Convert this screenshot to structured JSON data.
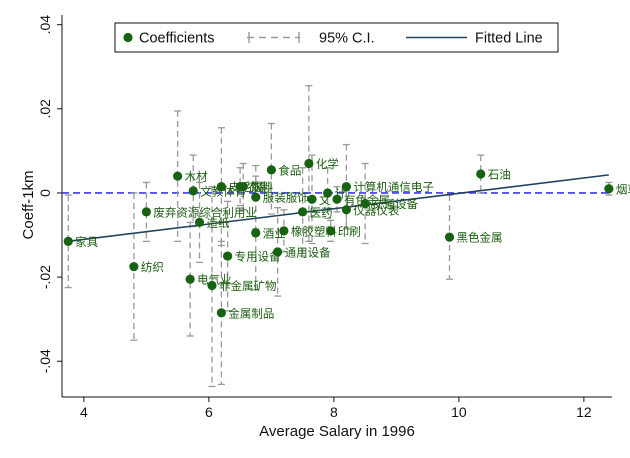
{
  "chart_data": {
    "type": "scatter",
    "xlabel": "Average Salary in 1996",
    "ylabel": "Coeff-1km",
    "xlim": [
      3.65,
      12.45
    ],
    "ylim": [
      -0.0485,
      0.0423
    ],
    "x_ticks": [
      4,
      6,
      8,
      10,
      12
    ],
    "y_ticks": [
      0.04,
      0.02,
      0,
      -0.02,
      -0.04
    ],
    "x_tick_labels": [
      "4",
      "6",
      "8",
      "10",
      "12"
    ],
    "y_tick_labels": [
      ".04",
      ".02",
      "0",
      "-.02",
      "-.04"
    ],
    "grid": false,
    "legend": {
      "position": "top",
      "entries": [
        "Coefficients",
        "95% C.I.",
        "Fitted Line"
      ]
    },
    "reference_line": {
      "y": 0,
      "style": "dashed",
      "color": "#3a3af5"
    },
    "fitted_line": {
      "x": [
        3.75,
        12.4
      ],
      "y": [
        -0.0115,
        0.0043
      ]
    },
    "colors": {
      "points": "#176312",
      "point_labels": "#1d5e12",
      "ci": "#9a9a9a",
      "fitted": "#23425e",
      "zero_line": "#3a3af5"
    },
    "points": [
      {
        "x": 3.75,
        "y": -0.0115,
        "lo": -0.0225,
        "hi": -0.0005,
        "label": "家具"
      },
      {
        "x": 4.8,
        "y": -0.0175,
        "lo": -0.035,
        "hi": 0.0,
        "label": "纺织"
      },
      {
        "x": 5.0,
        "y": -0.0045,
        "lo": -0.0115,
        "hi": 0.0025,
        "label": "废弃资源综合利用业"
      },
      {
        "x": 5.5,
        "y": 0.004,
        "lo": -0.0115,
        "hi": 0.0195,
        "label": "木材"
      },
      {
        "x": 5.7,
        "y": -0.0205,
        "lo": -0.034,
        "hi": -0.007,
        "label": "电气业"
      },
      {
        "x": 5.75,
        "y": 0.0005,
        "lo": -0.008,
        "hi": 0.009,
        "label": "文教体育"
      },
      {
        "x": 5.85,
        "y": -0.007,
        "lo": -0.0165,
        "hi": 0.0025,
        "label": "造纸"
      },
      {
        "x": 6.05,
        "y": -0.022,
        "lo": -0.046,
        "hi": 0.0015,
        "label": "非金属矿物"
      },
      {
        "x": 6.2,
        "y": 0.0015,
        "lo": -0.0125,
        "hi": 0.0155,
        "label": "皮毛服"
      },
      {
        "x": 6.2,
        "y": -0.0285,
        "lo": -0.0455,
        "hi": -0.0115,
        "label": "金属制品"
      },
      {
        "x": 6.3,
        "y": -0.015,
        "lo": -0.028,
        "hi": -0.002,
        "label": "专用设备"
      },
      {
        "x": 6.5,
        "y": 0.0015,
        "lo": -0.003,
        "hi": 0.006,
        "label": "农副"
      },
      {
        "x": 6.55,
        "y": 0.0015,
        "lo": -0.004,
        "hi": 0.007,
        "label": "饮料"
      },
      {
        "x": 6.75,
        "y": -0.001,
        "lo": -0.0085,
        "hi": 0.0065,
        "label": "服装服饰"
      },
      {
        "x": 6.75,
        "y": -0.0095,
        "lo": -0.023,
        "hi": 0.004,
        "label": "酒业"
      },
      {
        "x": 7.0,
        "y": 0.0055,
        "lo": -0.005,
        "hi": 0.0165,
        "label": "食品"
      },
      {
        "x": 7.1,
        "y": -0.014,
        "lo": -0.0245,
        "hi": -0.0035,
        "label": "通用设备"
      },
      {
        "x": 7.2,
        "y": -0.009,
        "lo": -0.014,
        "hi": -0.004,
        "label": "橡胶塑料"
      },
      {
        "x": 7.5,
        "y": -0.0045,
        "lo": -0.015,
        "hi": 0.006,
        "label": "医药"
      },
      {
        "x": 7.6,
        "y": 0.007,
        "lo": -0.0115,
        "hi": 0.0255,
        "label": "化学"
      },
      {
        "x": 7.65,
        "y": -0.0015,
        "lo": -0.012,
        "hi": 0.009,
        "label": "文"
      },
      {
        "x": 7.9,
        "y": 0.0,
        "lo": -0.006,
        "hi": 0.006,
        "label": "计"
      },
      {
        "x": 7.95,
        "y": -0.009,
        "lo": -0.0115,
        "hi": -0.0065,
        "label": "印刷"
      },
      {
        "x": 8.05,
        "y": -0.0015,
        "lo": -0.0045,
        "hi": 0.0015,
        "label": "有色金属"
      },
      {
        "x": 8.2,
        "y": 0.0015,
        "lo": -0.0085,
        "hi": 0.0115,
        "label": "计算机通信电子"
      },
      {
        "x": 8.2,
        "y": -0.004,
        "lo": -0.0085,
        "hi": 0.0005,
        "label": "仪器仪表"
      },
      {
        "x": 8.5,
        "y": -0.0025,
        "lo": -0.012,
        "hi": 0.007,
        "label": "交通设备"
      },
      {
        "x": 9.85,
        "y": -0.0105,
        "lo": -0.0205,
        "hi": -0.0005,
        "label": "黑色金属"
      },
      {
        "x": 10.35,
        "y": 0.0045,
        "lo": 0.0,
        "hi": 0.009,
        "label": "石油"
      },
      {
        "x": 12.4,
        "y": 0.001,
        "lo": -0.0005,
        "hi": 0.0025,
        "label": "烟草"
      }
    ]
  }
}
